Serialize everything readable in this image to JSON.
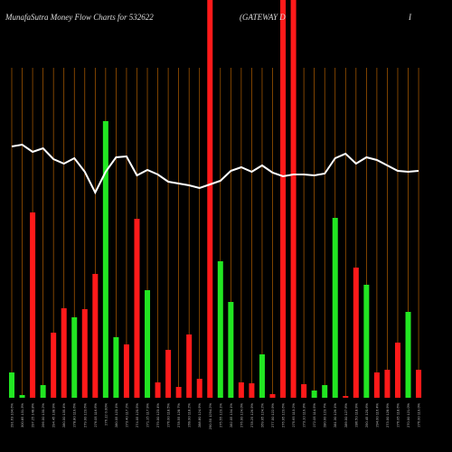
{
  "chart_data": {
    "type": "bar",
    "title": "MunafaSutra  Money Flow  Charts for 532622",
    "subtitle": "(GATEWAY D",
    "title_right": "I",
    "categories": [
      "291.63 104.6%",
      "300.85 131.3%",
      "297.25 148.8%",
      "296.00 130.2%",
      "294.45 138.9%",
      "280.00 135.4%",
      "278.80 119.6%",
      "279.00 123.6%",
      "276.05 116.6%",
      "276.12 0.00%",
      "280.05 123.1%",
      "273.40 117.2%",
      "274.05 120.5%",
      "271.15 117.9%",
      "279.00 123.4%",
      "276.00 118.5%",
      "278.55 128.7%",
      "269.00 118.2%",
      "288.80 124.9%",
      "290.50 1294.2%",
      "275.55 123.1%",
      "282.05 134.1%",
      "276.00 124.0%",
      "278.25 126.9%",
      "269.05 124.2%",
      "277.00 122.9%",
      "276.95 123.6%",
      "275.65 113.2%",
      "273.10 119.3%",
      "272.05 114.5%",
      "280.00 123.7%",
      "281.30 126.1%",
      "289.00 127.6%",
      "286.50 118.9%",
      "290.45 120.6%",
      "294.00 116.4%",
      "273.00 128.9%",
      "276.05 118.6%",
      "270.00 121.0%",
      "276.00 119.0%"
    ],
    "values": [
      28,
      3,
      205,
      14,
      72,
      99,
      89,
      98,
      137,
      306,
      67,
      59,
      198,
      119,
      17,
      53,
      12,
      70,
      21,
      440,
      151,
      106,
      17,
      16,
      48,
      4,
      440,
      440,
      15,
      8,
      14,
      199,
      2,
      144,
      125,
      28,
      31,
      61,
      95,
      31
    ],
    "colors": [
      "#22e622",
      "#22e622",
      "#ff1a1a",
      "#22e622",
      "#ff1a1a",
      "#ff1a1a",
      "#22e622",
      "#ff1a1a",
      "#ff1a1a",
      "#22e622",
      "#22e622",
      "#ff1a1a",
      "#ff1a1a",
      "#22e622",
      "#ff1a1a",
      "#ff1a1a",
      "#ff1a1a",
      "#ff1a1a",
      "#ff1a1a",
      "#ff1a1a",
      "#22e622",
      "#22e622",
      "#ff1a1a",
      "#ff1a1a",
      "#22e622",
      "#ff1a1a",
      "#ff1a1a",
      "#ff1a1a",
      "#ff1a1a",
      "#22e622",
      "#22e622",
      "#22e622",
      "#ff1a1a",
      "#ff1a1a",
      "#22e622",
      "#ff1a1a",
      "#ff1a1a",
      "#ff1a1a",
      "#22e622",
      "#ff1a1a"
    ],
    "line_values": [
      278,
      280,
      272,
      276,
      264,
      259,
      265,
      250,
      227,
      250,
      266,
      267,
      246,
      252,
      247,
      239,
      237,
      235,
      232,
      236,
      240,
      251,
      255,
      250,
      257,
      249,
      245,
      247,
      247,
      246,
      248,
      265,
      270,
      259,
      266,
      263,
      257,
      251,
      250,
      251
    ],
    "line_color": "#ffffff",
    "grid_color": "#b35f00",
    "ylim": [
      0,
      440
    ]
  }
}
